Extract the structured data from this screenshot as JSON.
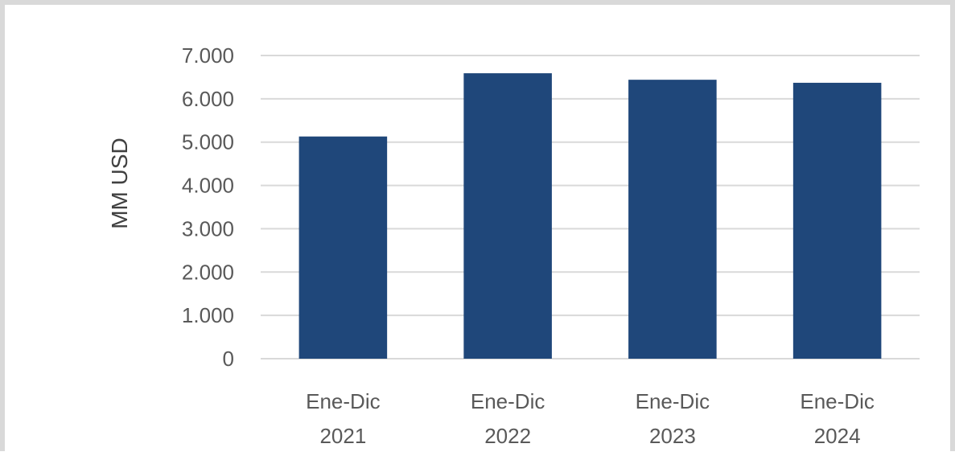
{
  "chart_data": {
    "type": "bar",
    "categories": [
      [
        "Ene-Dic",
        "2021"
      ],
      [
        "Ene-Dic",
        "2022"
      ],
      [
        "Ene-Dic",
        "2023"
      ],
      [
        "Ene-Dic",
        "2024"
      ]
    ],
    "values": [
      5130,
      6590,
      6440,
      6370
    ],
    "ylabel": "MM USD",
    "xlabel": "",
    "ylim": [
      0,
      7000
    ],
    "yticks": [
      0,
      1000,
      2000,
      3000,
      4000,
      5000,
      6000,
      7000
    ],
    "ytick_labels": [
      "0",
      "1.000",
      "2.000",
      "3.000",
      "4.000",
      "5.000",
      "6.000",
      "7.000"
    ],
    "grid": true,
    "legend": "none",
    "colors": {
      "bar": "#1f477a",
      "grid": "#d9d9d9",
      "axis": "#d9d9d9"
    }
  }
}
